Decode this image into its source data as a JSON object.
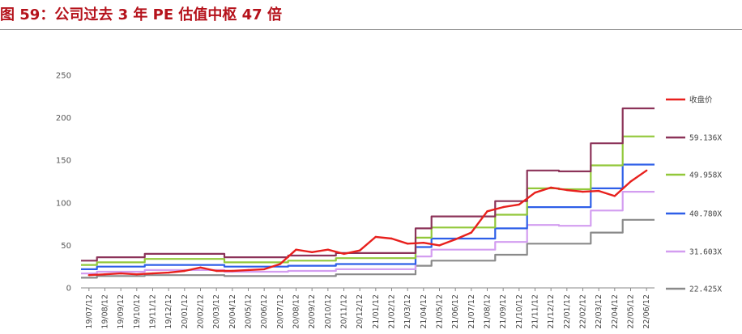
{
  "header": {
    "title": "图 59：公司过去 3 年 PE 估值中枢 47 倍"
  },
  "chart_data": {
    "type": "line",
    "title": "",
    "xlabel": "",
    "ylabel": "",
    "ylim": [
      0,
      250
    ],
    "yticks": [
      "0",
      "50",
      "100",
      "150",
      "200",
      "250"
    ],
    "x": [
      "19/07/12",
      "19/08/12",
      "19/09/12",
      "19/10/12",
      "19/11/12",
      "19/12/12",
      "20/01/12",
      "20/02/12",
      "20/03/12",
      "20/04/12",
      "20/05/12",
      "20/06/12",
      "20/07/12",
      "20/08/12",
      "20/09/12",
      "20/10/12",
      "20/11/12",
      "20/12/12",
      "21/01/12",
      "21/02/12",
      "21/03/12",
      "21/04/12",
      "21/05/12",
      "21/06/12",
      "21/07/12",
      "21/08/12",
      "21/09/12",
      "21/10/12",
      "21/11/12",
      "21/12/12",
      "22/01/12",
      "22/02/12",
      "22/03/12",
      "22/04/12",
      "22/05/12",
      "22/06/12"
    ],
    "legend_position": "right",
    "series": [
      {
        "name": "收盘价",
        "color": "#e8201d",
        "values": [
          15,
          16,
          17,
          16,
          17,
          18,
          20,
          24,
          20,
          20,
          21,
          22,
          28,
          45,
          42,
          45,
          40,
          44,
          60,
          58,
          52,
          53,
          50,
          57,
          65,
          90,
          95,
          98,
          112,
          118,
          115,
          113,
          114,
          108,
          125,
          138
        ]
      },
      {
        "name": "59.136X",
        "color": "#8c3359",
        "values": [
          32,
          36,
          36,
          36,
          40,
          40,
          40,
          40,
          40,
          36,
          36,
          36,
          36,
          38,
          38,
          38,
          41,
          41,
          41,
          41,
          41,
          70,
          84,
          84,
          84,
          84,
          102,
          102,
          138,
          138,
          137,
          137,
          170,
          170,
          211,
          211
        ]
      },
      {
        "name": "49.958X",
        "color": "#92c83a",
        "values": [
          27,
          30,
          30,
          30,
          34,
          34,
          34,
          34,
          34,
          30,
          30,
          30,
          30,
          32,
          32,
          32,
          35,
          35,
          35,
          35,
          35,
          59,
          71,
          71,
          71,
          71,
          86,
          86,
          117,
          117,
          116,
          116,
          144,
          144,
          178,
          178
        ]
      },
      {
        "name": "40.780X",
        "color": "#2e5fe8",
        "values": [
          22,
          25,
          25,
          25,
          27,
          27,
          27,
          27,
          27,
          25,
          25,
          25,
          25,
          26,
          26,
          26,
          28,
          28,
          28,
          28,
          28,
          48,
          58,
          58,
          58,
          58,
          70,
          70,
          95,
          95,
          95,
          95,
          117,
          117,
          145,
          145
        ]
      },
      {
        "name": "31.603X",
        "color": "#d39df0",
        "values": [
          17,
          19,
          19,
          19,
          21,
          21,
          21,
          21,
          21,
          19,
          19,
          19,
          19,
          20,
          20,
          20,
          22,
          22,
          22,
          22,
          22,
          37,
          45,
          45,
          45,
          45,
          54,
          54,
          74,
          74,
          73,
          73,
          91,
          91,
          113,
          113
        ]
      },
      {
        "name": "22.425X",
        "color": "#8a8a8a",
        "values": [
          12,
          14,
          14,
          14,
          15,
          15,
          15,
          15,
          15,
          14,
          14,
          14,
          14,
          14,
          14,
          14,
          16,
          16,
          16,
          16,
          16,
          26,
          32,
          32,
          32,
          32,
          39,
          39,
          52,
          52,
          52,
          52,
          65,
          65,
          80,
          80
        ]
      }
    ]
  }
}
